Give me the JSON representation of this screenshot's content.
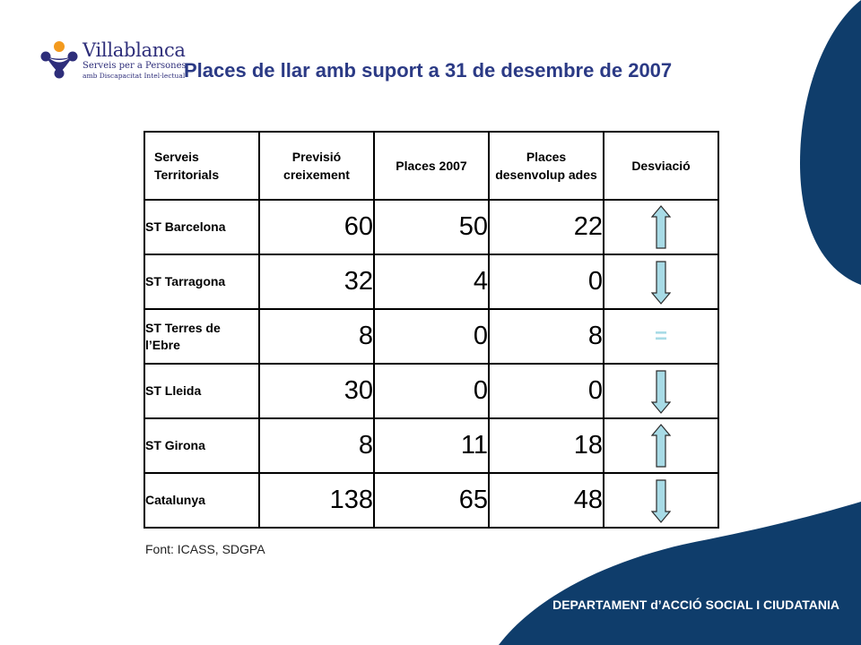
{
  "logo": {
    "name": "Villablanca",
    "line1": "Serveis per a Persones",
    "line2": "amb Discapacitat Intel·lectual"
  },
  "title": "Places de llar amb suport a 31 de desembre de 2007",
  "table": {
    "headers": [
      "Serveis Territorials",
      "Previsió creixement",
      "Places 2007",
      "Places desenvolup ades",
      "Desviació"
    ],
    "rows": [
      {
        "name": "ST Barcelona",
        "previsio": "60",
        "places2007": "50",
        "desenvolupades": "22",
        "desviacio": "up-arrow-icon"
      },
      {
        "name": "ST Tarragona",
        "previsio": "32",
        "places2007": "4",
        "desenvolupades": "0",
        "desviacio": "down-arrow-icon"
      },
      {
        "name": "ST Terres de l’Ebre",
        "previsio": "8",
        "places2007": "0",
        "desenvolupades": "8",
        "desviacio": "="
      },
      {
        "name": "ST Lleida",
        "previsio": "30",
        "places2007": "0",
        "desenvolupades": "0",
        "desviacio": "down-arrow-icon"
      },
      {
        "name": "ST Girona",
        "previsio": "8",
        "places2007": "11",
        "desenvolupades": "18",
        "desviacio": "up-arrow-icon"
      },
      {
        "name": "Catalunya",
        "previsio": "138",
        "places2007": "65",
        "desenvolupades": "48",
        "desviacio": "down-arrow-icon"
      }
    ]
  },
  "source": "Font: ICASS, SDGPA",
  "footer": "DEPARTAMENT d’ACCIÓ SOCIAL I CIUDATANIA",
  "colors": {
    "title": "#2b3a85",
    "shape": "#0f3d6b",
    "arrow_fill": "#a8dbe6",
    "logo_orange": "#f39a1e",
    "logo_navy": "#2e2e7a"
  }
}
